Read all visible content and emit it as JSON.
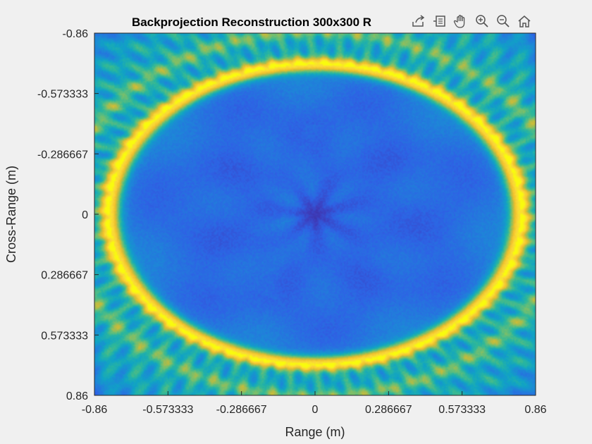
{
  "chart_data": {
    "type": "heatmap",
    "title": "Backprojection Reconstruction 300x300 R",
    "xlabel": "Range (m)",
    "ylabel": "Cross-Range (m)",
    "xlim": [
      -0.86,
      0.86
    ],
    "ylim": [
      -0.86,
      0.86
    ],
    "y_direction": "reverse",
    "xticks": [
      -0.86,
      -0.573333,
      -0.286667,
      0,
      0.286667,
      0.573333,
      0.86
    ],
    "xtick_labels": [
      "-0.86",
      "-0.573333",
      "-0.286667",
      "0",
      "0.286667",
      "0.573333",
      "0.86"
    ],
    "yticks": [
      -0.86,
      -0.573333,
      -0.286667,
      0,
      0.286667,
      0.573333,
      0.86
    ],
    "ytick_labels": [
      "-0.86",
      "-0.573333",
      "-0.286667",
      "0",
      "0.286667",
      "0.573333",
      "0.86"
    ],
    "grid": 300,
    "colormap": "parula",
    "colors": [
      "#352a87",
      "#3e3cbb",
      "#2e62e5",
      "#1e86d8",
      "#10a3c5",
      "#2bb79c",
      "#72bf70",
      "#c1bb3e",
      "#f4c22c",
      "#fad73a",
      "#f9fb0e"
    ],
    "features": {
      "bright_ring": {
        "center": [
          0,
          0
        ],
        "radius_x": 0.8,
        "radius_y": 0.71,
        "level": "high"
      },
      "central_minimum": {
        "center": [
          0,
          0
        ],
        "radius": 0.06,
        "level": "lowest"
      },
      "interior": "low"
    }
  },
  "toolbar": {
    "icons": [
      "export-icon",
      "brush-icon",
      "pan-hand-icon",
      "zoom-in-icon",
      "zoom-out-icon",
      "home-icon"
    ]
  }
}
